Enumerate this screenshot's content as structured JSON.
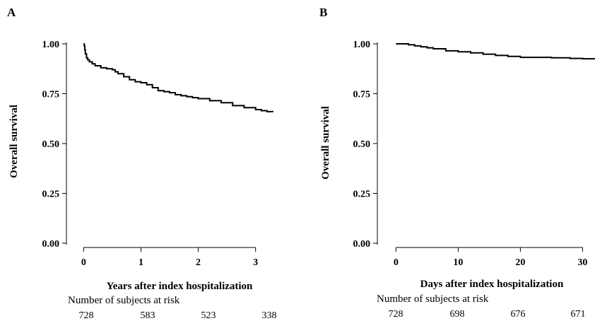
{
  "chart_data": [
    {
      "type": "line",
      "panel_label": "A",
      "xlabel": "Years after index hospitalization",
      "ylabel": "Overall survival",
      "xlim": [
        -0.3,
        3.3
      ],
      "ylim": [
        0,
        1.0
      ],
      "xticks": [
        0,
        1,
        2,
        3
      ],
      "xtick_labels": [
        "0",
        "1",
        "2",
        "3"
      ],
      "yticks": [
        0,
        0.25,
        0.5,
        0.75,
        1.0
      ],
      "ytick_labels": [
        "0.00",
        "0.25",
        "0.50",
        "0.75",
        "1.00"
      ],
      "grid": false,
      "step": true,
      "series": [
        {
          "x": [
            0,
            0.01,
            0.02,
            0.03,
            0.05,
            0.07,
            0.1,
            0.15,
            0.2,
            0.3,
            0.4,
            0.5,
            0.55,
            0.6,
            0.7,
            0.8,
            0.9,
            1.0,
            1.1,
            1.2,
            1.3,
            1.4,
            1.5,
            1.6,
            1.7,
            1.8,
            1.9,
            2.0,
            2.2,
            2.4,
            2.6,
            2.8,
            3.0,
            3.1,
            3.2,
            3.3
          ],
          "y": [
            1.0,
            0.99,
            0.97,
            0.95,
            0.93,
            0.92,
            0.91,
            0.9,
            0.89,
            0.88,
            0.875,
            0.87,
            0.86,
            0.85,
            0.835,
            0.82,
            0.81,
            0.805,
            0.795,
            0.78,
            0.765,
            0.76,
            0.755,
            0.745,
            0.74,
            0.735,
            0.73,
            0.725,
            0.715,
            0.705,
            0.69,
            0.68,
            0.67,
            0.665,
            0.66,
            0.658
          ]
        }
      ],
      "risk_table_title": "Number of subjects at risk",
      "risk_numbers": [
        "728",
        "583",
        "523",
        "338"
      ]
    },
    {
      "type": "line",
      "panel_label": "B",
      "xlabel": "Days after index hospitalization",
      "ylabel": "Overall survival",
      "xlim": [
        -3,
        32
      ],
      "ylim": [
        0,
        1.0
      ],
      "xticks": [
        0,
        10,
        20,
        30
      ],
      "xtick_labels": [
        "0",
        "10",
        "20",
        "30"
      ],
      "yticks": [
        0,
        0.25,
        0.5,
        0.75,
        1.0
      ],
      "ytick_labels": [
        "0.00",
        "0.25",
        "0.50",
        "0.75",
        "1.00"
      ],
      "grid": false,
      "step": true,
      "series": [
        {
          "x": [
            0,
            2,
            3,
            4,
            5,
            6,
            8,
            10,
            12,
            14,
            16,
            18,
            20,
            25,
            28,
            30,
            32
          ],
          "y": [
            1.0,
            0.995,
            0.99,
            0.985,
            0.98,
            0.975,
            0.965,
            0.96,
            0.955,
            0.948,
            0.942,
            0.937,
            0.932,
            0.93,
            0.927,
            0.925,
            0.922
          ]
        }
      ],
      "risk_table_title": "Number of subjects at risk",
      "risk_numbers": [
        "728",
        "698",
        "676",
        "671"
      ]
    }
  ]
}
